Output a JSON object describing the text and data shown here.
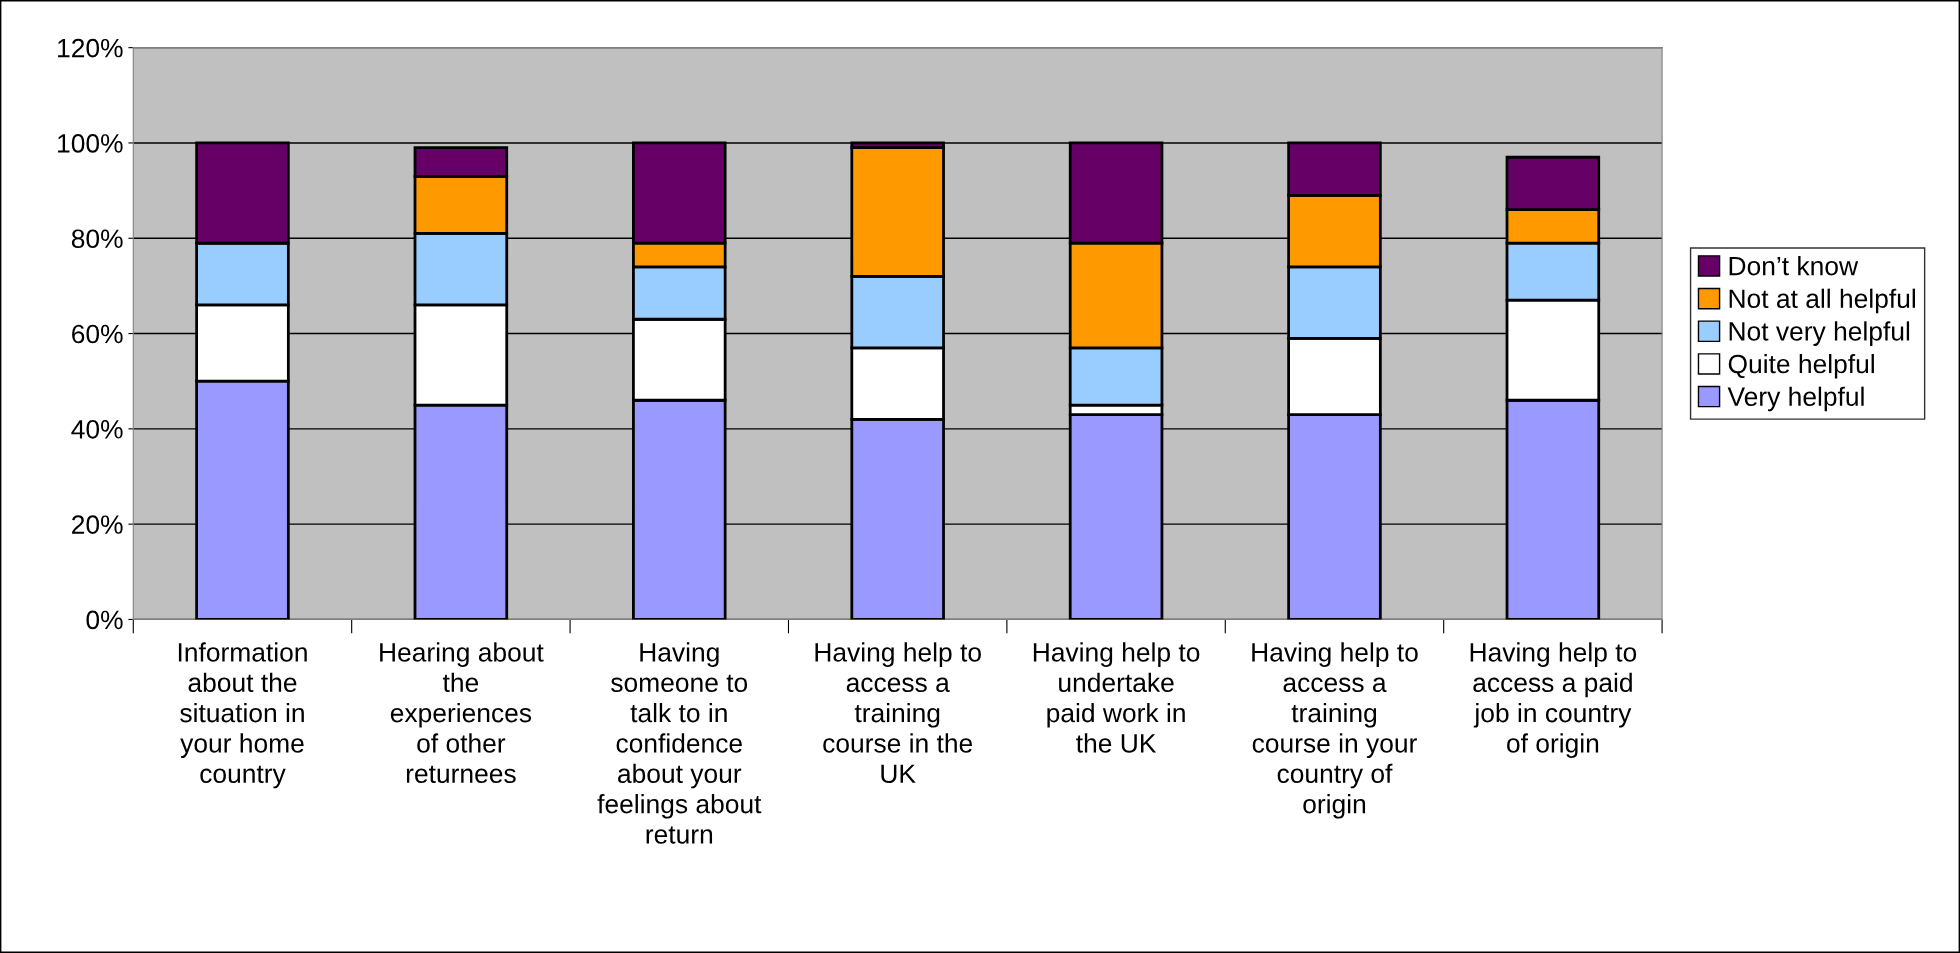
{
  "chart_data": {
    "type": "bar",
    "stacked": true,
    "categories": [
      "Information\nabout the\nsituation in\nyour home\ncountry",
      "Hearing about\nthe\nexperiences\nof other\nreturnees",
      "Having\nsomeone to\ntalk to in\nconfidence\nabout your\nfeelings about\nreturn",
      "Having help to\naccess a\ntraining\ncourse in the\nUK",
      "Having help to\nundertake\npaid work in\nthe UK",
      "Having help to\naccess a\ntraining\ncourse in your\ncountry of\norigin",
      "Having help to\naccess a paid\njob in country\nof origin"
    ],
    "series": [
      {
        "name": "Very helpful",
        "color": "#9999ff",
        "values": [
          50,
          45,
          46,
          42,
          43,
          43,
          46
        ]
      },
      {
        "name": "Quite helpful",
        "color": "#ffffff",
        "values": [
          16,
          21,
          17,
          15,
          2,
          16,
          21
        ]
      },
      {
        "name": "Not very helpful",
        "color": "#99ccff",
        "values": [
          13,
          15,
          11,
          15,
          12,
          15,
          12
        ]
      },
      {
        "name": "Not at all helpful",
        "color": "#ff9900",
        "values": [
          0,
          12,
          5,
          27,
          22,
          15,
          7
        ]
      },
      {
        "name": "Don’t know",
        "color": "#660066",
        "values": [
          21,
          6,
          21,
          1,
          21,
          11,
          11
        ]
      }
    ],
    "ylim": [
      0,
      120
    ],
    "yticks": [
      {
        "value": 0,
        "label": "0%"
      },
      {
        "value": 20,
        "label": "20%"
      },
      {
        "value": 40,
        "label": "40%"
      },
      {
        "value": 60,
        "label": "60%"
      },
      {
        "value": 80,
        "label": "80%"
      },
      {
        "value": 100,
        "label": "100%"
      },
      {
        "value": 120,
        "label": "120%"
      }
    ],
    "grid": "y",
    "legend": "right"
  }
}
